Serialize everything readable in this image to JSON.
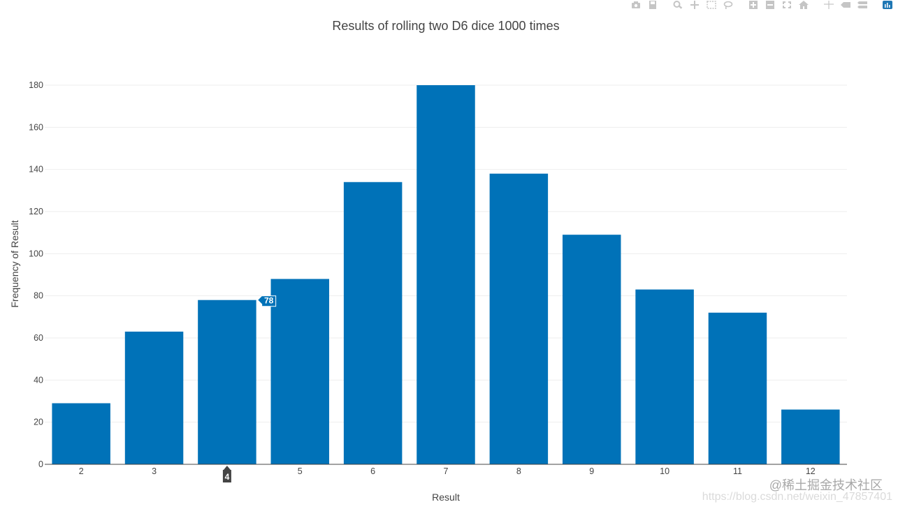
{
  "chart_data": {
    "type": "bar",
    "title": "Results of rolling two D6 dice 1000 times",
    "xlabel": "Result",
    "ylabel": "Frequency of Result",
    "categories": [
      "2",
      "3",
      "4",
      "5",
      "6",
      "7",
      "8",
      "9",
      "10",
      "11",
      "12"
    ],
    "values": [
      29,
      63,
      78,
      88,
      134,
      180,
      138,
      109,
      83,
      72,
      26
    ],
    "ylim": [
      0,
      180
    ],
    "yticks": [
      0,
      20,
      40,
      60,
      80,
      100,
      120,
      140,
      160,
      180
    ],
    "grid": true,
    "bar_color": "#0072b8",
    "hover": {
      "category": "4",
      "x_label": "4",
      "y_label": "78"
    }
  },
  "toolbar": {
    "buttons": [
      "camera-icon",
      "save-icon",
      "zoom-icon",
      "pan-icon",
      "box-select-icon",
      "lasso-icon",
      "zoom-in-icon",
      "zoom-out-icon",
      "autoscale-icon",
      "home-icon",
      "spike-lines-icon",
      "hover-closest-icon",
      "hover-compare-icon",
      "plotly-logo-icon"
    ]
  },
  "watermark": {
    "line1": "@稀土掘金技术社区",
    "line2": "https://blog.csdn.net/weixin_47857401"
  }
}
